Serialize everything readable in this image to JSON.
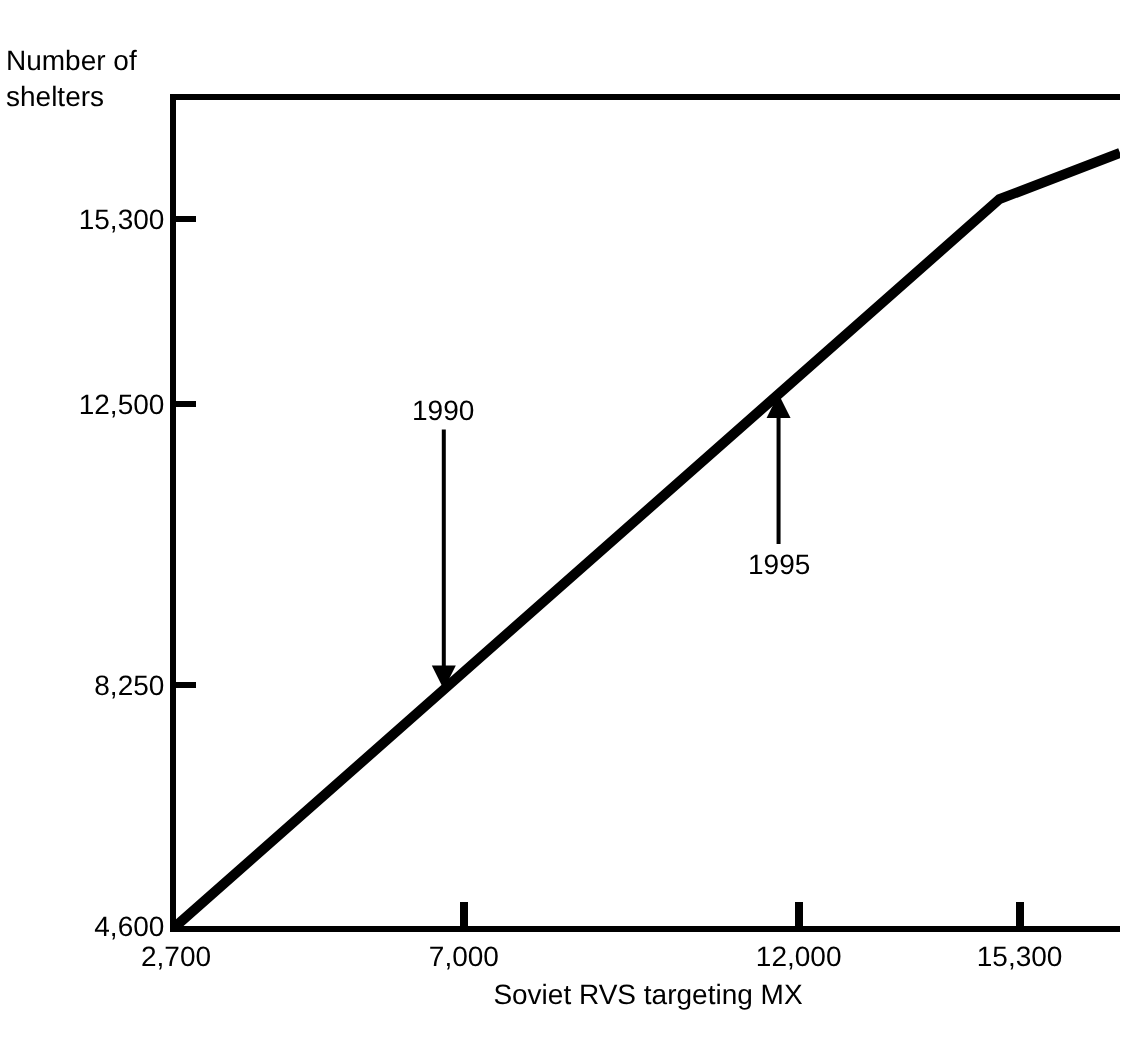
{
  "chart_data": {
    "type": "line",
    "xlabel": "Soviet RVS targeting MX",
    "ylabel": "Number of shelters",
    "x": [
      2700,
      15000,
      16800
    ],
    "series": [
      {
        "color": "#000000",
        "values": [
          4600,
          15600,
          16300
        ]
      }
    ],
    "xlim": [
      2700,
      16800
    ],
    "ylim": [
      4600,
      17100
    ],
    "xticks": [
      {
        "value": 2700,
        "label": "2,700"
      },
      {
        "value": 7000,
        "label": "7,000"
      },
      {
        "value": 12000,
        "label": "12,000"
      },
      {
        "value": 15300,
        "label": "15,300"
      }
    ],
    "yticks": [
      {
        "value": 4600,
        "label": "4,600"
      },
      {
        "value": 8250,
        "label": "8,250"
      },
      {
        "value": 12500,
        "label": "12,500"
      },
      {
        "value": 15300,
        "label": "15,300"
      }
    ],
    "annotations": [
      {
        "text": "1990",
        "x": 6700,
        "y": 8180
      },
      {
        "text": "1995",
        "x": 11700,
        "y": 12650
      }
    ],
    "marker": "none",
    "line_style": "solid"
  }
}
